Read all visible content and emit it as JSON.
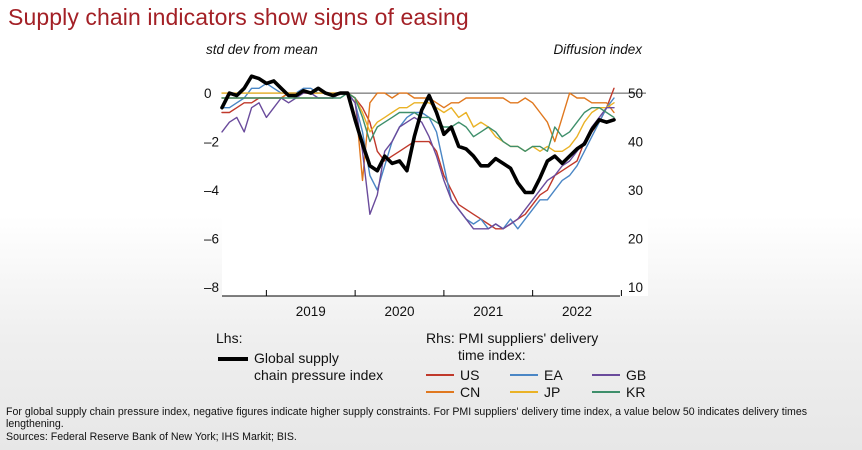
{
  "title": "Supply chain indicators show signs of easing",
  "chart_data": {
    "type": "line",
    "left_axis_unit": "std dev from mean",
    "right_axis_unit": "Diffusion index",
    "left_ticks": [
      "0",
      "–2",
      "–4",
      "–6",
      "–8"
    ],
    "right_ticks": [
      "50",
      "40",
      "30",
      "20",
      "10"
    ],
    "left_ylim": [
      -8,
      0.5
    ],
    "right_ylim": [
      10,
      52.5
    ],
    "x_ticks": [
      "2019",
      "2020",
      "2021",
      "2022"
    ],
    "x_range": [
      "2018-07",
      "2022-12"
    ],
    "grid": false,
    "reference_line": {
      "axis": "right",
      "value": 50
    },
    "legend_lhs_header": "Lhs:",
    "legend_rhs_header_1": "Rhs: PMI suppliers' delivery",
    "legend_rhs_header_2": "time index:",
    "series": [
      {
        "name": "Global supply chain pressure index",
        "axis": "left",
        "color": "#000000",
        "x": [
          "2018-07",
          "2018-08",
          "2018-09",
          "2018-10",
          "2018-11",
          "2018-12",
          "2019-01",
          "2019-02",
          "2019-03",
          "2019-04",
          "2019-05",
          "2019-06",
          "2019-07",
          "2019-08",
          "2019-09",
          "2019-10",
          "2019-11",
          "2019-12",
          "2020-01",
          "2020-02",
          "2020-03",
          "2020-04",
          "2020-05",
          "2020-06",
          "2020-07",
          "2020-08",
          "2020-09",
          "2020-10",
          "2020-11",
          "2020-12",
          "2021-01",
          "2021-02",
          "2021-03",
          "2021-04",
          "2021-05",
          "2021-06",
          "2021-07",
          "2021-08",
          "2021-09",
          "2021-10",
          "2021-11",
          "2021-12",
          "2022-01",
          "2022-02",
          "2022-03",
          "2022-04",
          "2022-05",
          "2022-06",
          "2022-07",
          "2022-08",
          "2022-09",
          "2022-10",
          "2022-11",
          "2022-12"
        ],
        "values": [
          -0.6,
          0.0,
          -0.1,
          0.2,
          0.7,
          0.6,
          0.4,
          0.5,
          0.2,
          -0.1,
          -0.1,
          0.1,
          0.0,
          0.2,
          0.0,
          -0.1,
          0.0,
          0.0,
          -1.1,
          -2.1,
          -3.0,
          -3.2,
          -2.6,
          -2.9,
          -2.8,
          -3.2,
          -1.8,
          -0.7,
          -0.1,
          -0.8,
          -1.7,
          -1.4,
          -2.2,
          -2.3,
          -2.6,
          -3.0,
          -3.0,
          -2.7,
          -2.9,
          -3.1,
          -3.7,
          -4.1,
          -4.1,
          -3.5,
          -2.8,
          -2.6,
          -2.9,
          -2.6,
          -2.3,
          -2.1,
          -1.5,
          -1.1,
          -1.2,
          -1.1
        ]
      },
      {
        "name": "US",
        "axis": "right",
        "color": "#c0392b",
        "x": [
          "2018-07",
          "2018-08",
          "2018-09",
          "2018-10",
          "2018-11",
          "2018-12",
          "2019-01",
          "2019-02",
          "2019-03",
          "2019-04",
          "2019-05",
          "2019-06",
          "2019-07",
          "2019-08",
          "2019-09",
          "2019-10",
          "2019-11",
          "2019-12",
          "2020-01",
          "2020-02",
          "2020-03",
          "2020-04",
          "2020-05",
          "2020-06",
          "2020-07",
          "2020-08",
          "2020-09",
          "2020-10",
          "2020-11",
          "2020-12",
          "2021-01",
          "2021-02",
          "2021-03",
          "2021-04",
          "2021-05",
          "2021-06",
          "2021-07",
          "2021-08",
          "2021-09",
          "2021-10",
          "2021-11",
          "2021-12",
          "2022-01",
          "2022-02",
          "2022-03",
          "2022-04",
          "2022-05",
          "2022-06",
          "2022-07",
          "2022-08",
          "2022-09",
          "2022-10",
          "2022-11",
          "2022-12"
        ],
        "values": [
          46,
          46,
          47,
          48,
          48,
          49,
          49,
          49,
          49,
          50,
          50,
          50,
          50,
          50,
          50,
          50,
          50,
          50,
          49,
          47,
          44,
          38,
          36,
          37,
          38,
          39,
          40,
          40,
          40,
          38,
          33,
          30,
          27,
          26,
          25,
          24,
          23,
          22,
          22,
          23,
          24,
          25,
          27,
          29,
          30,
          33,
          34,
          35,
          36,
          40,
          42,
          44,
          47,
          51
        ]
      },
      {
        "name": "CN",
        "axis": "right",
        "color": "#e0781f",
        "x": [
          "2018-07",
          "2018-08",
          "2018-09",
          "2018-10",
          "2018-11",
          "2018-12",
          "2019-01",
          "2019-02",
          "2019-03",
          "2019-04",
          "2019-05",
          "2019-06",
          "2019-07",
          "2019-08",
          "2019-09",
          "2019-10",
          "2019-11",
          "2019-12",
          "2020-01",
          "2020-02",
          "2020-03",
          "2020-04",
          "2020-05",
          "2020-06",
          "2020-07",
          "2020-08",
          "2020-09",
          "2020-10",
          "2020-11",
          "2020-12",
          "2021-01",
          "2021-02",
          "2021-03",
          "2021-04",
          "2021-05",
          "2021-06",
          "2021-07",
          "2021-08",
          "2021-09",
          "2021-10",
          "2021-11",
          "2021-12",
          "2022-01",
          "2022-02",
          "2022-03",
          "2022-04",
          "2022-05",
          "2022-06",
          "2022-07",
          "2022-08",
          "2022-09",
          "2022-10",
          "2022-11",
          "2022-12"
        ],
        "values": [
          49,
          49,
          49,
          49,
          49,
          49,
          49,
          49,
          49,
          50,
          49,
          49,
          49,
          49,
          49,
          49,
          50,
          50,
          49,
          32,
          48,
          50,
          50,
          49,
          50,
          50,
          49,
          49,
          49,
          48,
          47,
          48,
          48,
          49,
          49,
          49,
          49,
          49,
          49,
          48,
          48,
          49,
          48,
          46,
          44,
          40,
          45,
          50,
          49,
          49,
          48,
          48,
          48,
          46
        ]
      },
      {
        "name": "EA",
        "axis": "right",
        "color": "#4a86c5",
        "x": [
          "2018-07",
          "2018-08",
          "2018-09",
          "2018-10",
          "2018-11",
          "2018-12",
          "2019-01",
          "2019-02",
          "2019-03",
          "2019-04",
          "2019-05",
          "2019-06",
          "2019-07",
          "2019-08",
          "2019-09",
          "2019-10",
          "2019-11",
          "2019-12",
          "2020-01",
          "2020-02",
          "2020-03",
          "2020-04",
          "2020-05",
          "2020-06",
          "2020-07",
          "2020-08",
          "2020-09",
          "2020-10",
          "2020-11",
          "2020-12",
          "2021-01",
          "2021-02",
          "2021-03",
          "2021-04",
          "2021-05",
          "2021-06",
          "2021-07",
          "2021-08",
          "2021-09",
          "2021-10",
          "2021-11",
          "2021-12",
          "2022-01",
          "2022-02",
          "2022-03",
          "2022-04",
          "2022-05",
          "2022-06",
          "2022-07",
          "2022-08",
          "2022-09",
          "2022-10",
          "2022-11",
          "2022-12"
        ],
        "values": [
          47,
          47,
          48,
          49,
          51,
          51,
          52,
          51,
          50,
          50,
          50,
          51,
          51,
          50,
          50,
          50,
          50,
          50,
          48,
          42,
          33,
          30,
          35,
          40,
          43,
          45,
          46,
          46,
          45,
          42,
          35,
          28,
          26,
          24,
          23,
          24,
          22,
          23,
          22,
          24,
          22,
          24,
          26,
          28,
          28,
          30,
          32,
          33,
          35,
          38,
          41,
          44,
          47,
          49
        ]
      },
      {
        "name": "JP",
        "axis": "right",
        "color": "#eab226",
        "x": [
          "2018-07",
          "2018-08",
          "2018-09",
          "2018-10",
          "2018-11",
          "2018-12",
          "2019-01",
          "2019-02",
          "2019-03",
          "2019-04",
          "2019-05",
          "2019-06",
          "2019-07",
          "2019-08",
          "2019-09",
          "2019-10",
          "2019-11",
          "2019-12",
          "2020-01",
          "2020-02",
          "2020-03",
          "2020-04",
          "2020-05",
          "2020-06",
          "2020-07",
          "2020-08",
          "2020-09",
          "2020-10",
          "2020-11",
          "2020-12",
          "2021-01",
          "2021-02",
          "2021-03",
          "2021-04",
          "2021-05",
          "2021-06",
          "2021-07",
          "2021-08",
          "2021-09",
          "2021-10",
          "2021-11",
          "2021-12",
          "2022-01",
          "2022-02",
          "2022-03",
          "2022-04",
          "2022-05",
          "2022-06",
          "2022-07",
          "2022-08",
          "2022-09",
          "2022-10",
          "2022-11",
          "2022-12"
        ],
        "values": [
          50,
          50,
          50,
          50,
          50,
          50,
          50,
          50,
          50,
          50,
          50,
          50,
          50,
          50,
          50,
          50,
          50,
          50,
          49,
          46,
          42,
          44,
          45,
          46,
          47,
          47,
          48,
          48,
          48,
          47,
          46,
          47,
          45,
          46,
          43,
          44,
          43,
          41,
          40,
          39,
          39,
          38,
          39,
          38,
          39,
          38,
          38,
          39,
          41,
          44,
          46,
          47,
          47,
          48
        ]
      },
      {
        "name": "GB",
        "axis": "right",
        "color": "#6a4b9c",
        "x": [
          "2018-07",
          "2018-08",
          "2018-09",
          "2018-10",
          "2018-11",
          "2018-12",
          "2019-01",
          "2019-02",
          "2019-03",
          "2019-04",
          "2019-05",
          "2019-06",
          "2019-07",
          "2019-08",
          "2019-09",
          "2019-10",
          "2019-11",
          "2019-12",
          "2020-01",
          "2020-02",
          "2020-03",
          "2020-04",
          "2020-05",
          "2020-06",
          "2020-07",
          "2020-08",
          "2020-09",
          "2020-10",
          "2020-11",
          "2020-12",
          "2021-01",
          "2021-02",
          "2021-03",
          "2021-04",
          "2021-05",
          "2021-06",
          "2021-07",
          "2021-08",
          "2021-09",
          "2021-10",
          "2021-11",
          "2021-12",
          "2022-01",
          "2022-02",
          "2022-03",
          "2022-04",
          "2022-05",
          "2022-06",
          "2022-07",
          "2022-08",
          "2022-09",
          "2022-10",
          "2022-11",
          "2022-12"
        ],
        "values": [
          42,
          44,
          45,
          42,
          47,
          48,
          45,
          47,
          49,
          48,
          49,
          50,
          50,
          49,
          49,
          49,
          50,
          50,
          48,
          38,
          25,
          29,
          38,
          40,
          43,
          44,
          45,
          44,
          41,
          37,
          32,
          28,
          26,
          24,
          22,
          22,
          22,
          23,
          22,
          23,
          24,
          26,
          28,
          30,
          32,
          33,
          35,
          36,
          38,
          40,
          43,
          45,
          47,
          47
        ]
      },
      {
        "name": "KR",
        "axis": "right",
        "color": "#3e8f6b",
        "x": [
          "2018-07",
          "2018-08",
          "2018-09",
          "2018-10",
          "2018-11",
          "2018-12",
          "2019-01",
          "2019-02",
          "2019-03",
          "2019-04",
          "2019-05",
          "2019-06",
          "2019-07",
          "2019-08",
          "2019-09",
          "2019-10",
          "2019-11",
          "2019-12",
          "2020-01",
          "2020-02",
          "2020-03",
          "2020-04",
          "2020-05",
          "2020-06",
          "2020-07",
          "2020-08",
          "2020-09",
          "2020-10",
          "2020-11",
          "2020-12",
          "2021-01",
          "2021-02",
          "2021-03",
          "2021-04",
          "2021-05",
          "2021-06",
          "2021-07",
          "2021-08",
          "2021-09",
          "2021-10",
          "2021-11",
          "2021-12",
          "2022-01",
          "2022-02",
          "2022-03",
          "2022-04",
          "2022-05",
          "2022-06",
          "2022-07",
          "2022-08",
          "2022-09",
          "2022-10",
          "2022-11",
          "2022-12"
        ],
        "values": [
          49,
          49,
          49,
          49,
          49,
          49,
          49,
          49,
          49,
          49,
          49,
          49,
          49,
          49,
          49,
          49,
          49,
          50,
          49,
          45,
          40,
          43,
          44,
          45,
          46,
          46,
          46,
          45,
          45,
          44,
          43,
          43,
          44,
          43,
          41,
          42,
          43,
          42,
          40,
          39,
          39,
          38,
          39,
          39,
          38,
          43,
          41,
          42,
          44,
          46,
          47,
          47,
          46,
          45
        ]
      }
    ]
  },
  "legend": {
    "global_label_1": "Global supply",
    "global_label_2": "chain pressure index"
  },
  "footnote": "For global supply chain pressure index, negative figures indicate higher supply constraints. For PMI suppliers' delivery time index, a value below 50 indicates delivery times lengthening.",
  "source": "Sources: Federal Reserve Bank of New York; IHS Markit; BIS."
}
